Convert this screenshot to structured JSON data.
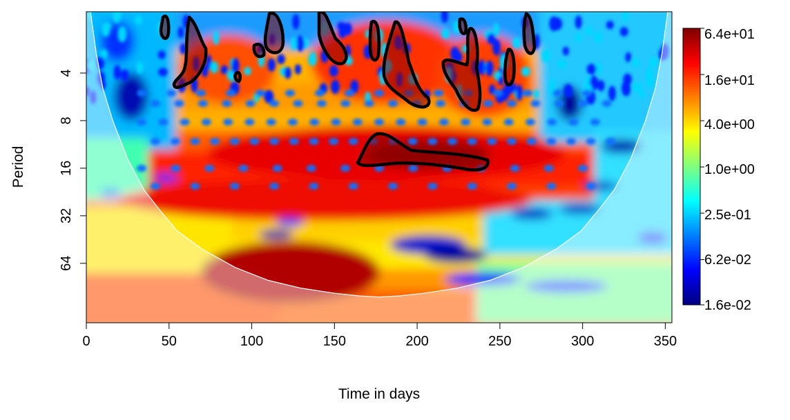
{
  "chart_data": {
    "type": "heatmap",
    "title": "",
    "xlabel": "Time in days",
    "ylabel": "Period",
    "x_ticks": [
      0,
      50,
      100,
      150,
      200,
      250,
      300,
      350
    ],
    "xlim": [
      0,
      354
    ],
    "y_ticks": [
      {
        "value": 4,
        "label": "4"
      },
      {
        "value": 8,
        "label": "8"
      },
      {
        "value": 16,
        "label": "16"
      },
      {
        "value": 32,
        "label": "32"
      },
      {
        "value": 64,
        "label": "64"
      }
    ],
    "ylim_log2": [
      0.71,
      7.25
    ],
    "y_scale": "log2",
    "y_reversed": true,
    "colorbar": {
      "scale": "log",
      "range": [
        0.016,
        64
      ],
      "tick_labels": [
        "6.4e+01",
        "1.6e+01",
        "4.0e+00",
        "1.0e+00",
        "2.5e-01",
        "6.2e-02",
        "1.6e-02"
      ],
      "tick_values": [
        64,
        16,
        4,
        1,
        0.25,
        0.062,
        0.016
      ],
      "palette": [
        "#00007f",
        "#0000ff",
        "#007fff",
        "#00ffff",
        "#7fff7f",
        "#ffff00",
        "#ff7f00",
        "#ff0000",
        "#7f0000"
      ]
    },
    "cone_of_influence": "shaded outside white U-shaped curve reaching period ~100 at day ~177",
    "significance_contours": "black outlines around high-power regions"
  }
}
